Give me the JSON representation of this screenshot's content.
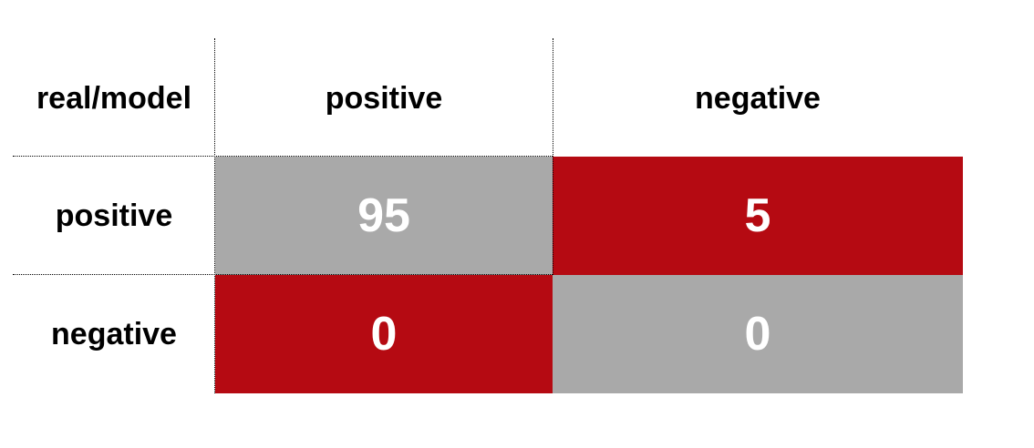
{
  "matrix": {
    "corner_label": "real/model",
    "col_headers": [
      "positive",
      "negative"
    ],
    "row_headers": [
      "positive",
      "negative"
    ],
    "cells": [
      [
        {
          "value": "95",
          "color": "#a9a9a9"
        },
        {
          "value": "5",
          "color": "#b50a12"
        }
      ],
      [
        {
          "value": "0",
          "color": "#b50a12"
        },
        {
          "value": "0",
          "color": "#a9a9a9"
        }
      ]
    ]
  }
}
